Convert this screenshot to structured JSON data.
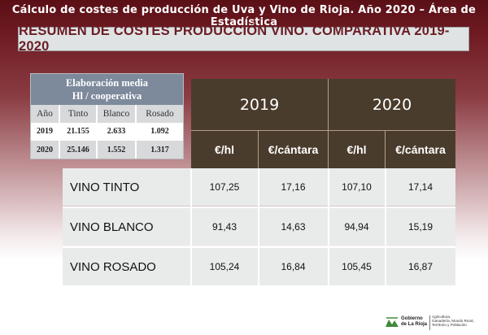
{
  "header": {
    "title": "Cálculo de costes de producción de Uva y Vino de Rioja. Año 2020   –   Área de Estadística"
  },
  "main_title": "RESUMEN DE COSTES PRODUCCIÓN VINO. COMPARATIVA 2019-2020",
  "production_table": {
    "title_line1": "Elaboración media",
    "title_line2": "Hl / cooperativa",
    "columns": [
      "Año",
      "Tinto",
      "Blanco",
      "Rosado"
    ],
    "rows": [
      [
        "2019",
        "21.155",
        "2.633",
        "1.092"
      ],
      [
        "2020",
        "25.146",
        "1.552",
        "1.317"
      ]
    ]
  },
  "cost_table": {
    "years": [
      "2019",
      "2020"
    ],
    "units": [
      "€/hl",
      "€/cántara",
      "€/hl",
      "€/cántara"
    ],
    "rows": [
      {
        "label": "VINO TINTO",
        "values": [
          "107,25",
          "17,16",
          "107,10",
          "17,14"
        ]
      },
      {
        "label": "VINO BLANCO",
        "values": [
          "91,43",
          "14,63",
          "94,94",
          "15,19"
        ]
      },
      {
        "label": "VINO ROSADO",
        "values": [
          "105,24",
          "16,84",
          "105,45",
          "16,87"
        ]
      }
    ]
  },
  "logo": {
    "name_line1": "Gobierno",
    "name_line2": "de La Rioja",
    "dept_line1": "Agricultura,",
    "dept_line2": "Ganadería, Mundo Rural,",
    "dept_line3": "Territorio y Población"
  },
  "colors": {
    "burgundy": "#6e1a22",
    "dark_brown": "#4a3c2c",
    "slate_blue": "#7d8a9c",
    "light_gray": "#e9ebeb",
    "logo_green": "#3f8a3a"
  }
}
